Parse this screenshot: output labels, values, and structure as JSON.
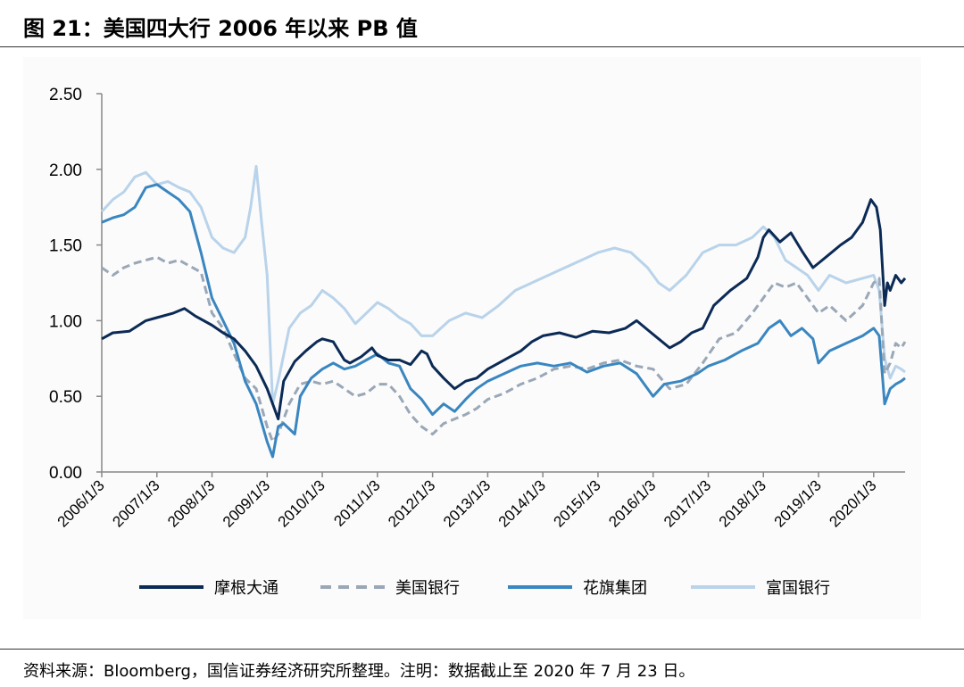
{
  "figure": {
    "title": "图 21：美国四大行 2006 年以来 PB 值"
  },
  "source_note": "资料来源：Bloomberg，国信证券经济研究所整理。注明：数据截止至 2020 年 7 月 23 日。",
  "chart_data": {
    "type": "line",
    "title": "",
    "xlabel": "",
    "ylabel": "",
    "ylim": [
      0,
      2.5
    ],
    "yticks": [
      "0.00",
      "0.50",
      "1.00",
      "1.50",
      "2.00",
      "2.50"
    ],
    "xticks": [
      "2006/1/3",
      "2007/1/3",
      "2008/1/3",
      "2009/1/3",
      "2010/1/3",
      "2011/1/3",
      "2012/1/3",
      "2013/1/3",
      "2014/1/3",
      "2015/1/3",
      "2016/1/3",
      "2017/1/3",
      "2018/1/3",
      "2019/1/3",
      "2020/1/3"
    ],
    "x_range": [
      2006.0,
      2020.57
    ],
    "grid": false,
    "legend_position": "bottom",
    "series": [
      {
        "name": "摩根大通",
        "color": "#0b2a55",
        "style": "solid",
        "x": [
          2006.0,
          2006.2,
          2006.5,
          2006.8,
          2007.0,
          2007.3,
          2007.5,
          2007.7,
          2008.0,
          2008.2,
          2008.4,
          2008.6,
          2008.8,
          2009.0,
          2009.1,
          2009.2,
          2009.3,
          2009.5,
          2009.7,
          2009.9,
          2010.0,
          2010.2,
          2010.4,
          2010.5,
          2010.7,
          2010.9,
          2011.0,
          2011.2,
          2011.4,
          2011.6,
          2011.8,
          2011.9,
          2012.0,
          2012.2,
          2012.4,
          2012.6,
          2012.8,
          2013.0,
          2013.2,
          2013.4,
          2013.6,
          2013.8,
          2014.0,
          2014.3,
          2014.6,
          2014.9,
          2015.2,
          2015.5,
          2015.7,
          2015.9,
          2016.1,
          2016.3,
          2016.5,
          2016.7,
          2016.9,
          2017.1,
          2017.4,
          2017.7,
          2017.9,
          2018.0,
          2018.1,
          2018.3,
          2018.5,
          2018.7,
          2018.9,
          2019.0,
          2019.2,
          2019.4,
          2019.6,
          2019.8,
          2019.95,
          2020.05,
          2020.12,
          2020.2,
          2020.25,
          2020.3,
          2020.4,
          2020.5,
          2020.57
        ],
        "values": [
          0.88,
          0.92,
          0.93,
          1.0,
          1.02,
          1.05,
          1.08,
          1.03,
          0.97,
          0.92,
          0.88,
          0.8,
          0.7,
          0.55,
          0.45,
          0.35,
          0.6,
          0.73,
          0.8,
          0.86,
          0.88,
          0.86,
          0.74,
          0.72,
          0.76,
          0.82,
          0.77,
          0.74,
          0.74,
          0.71,
          0.8,
          0.78,
          0.7,
          0.62,
          0.55,
          0.6,
          0.62,
          0.68,
          0.72,
          0.76,
          0.8,
          0.86,
          0.9,
          0.92,
          0.89,
          0.93,
          0.92,
          0.95,
          1.0,
          0.94,
          0.88,
          0.82,
          0.86,
          0.92,
          0.95,
          1.1,
          1.2,
          1.28,
          1.42,
          1.55,
          1.6,
          1.52,
          1.58,
          1.46,
          1.35,
          1.38,
          1.44,
          1.5,
          1.55,
          1.65,
          1.8,
          1.75,
          1.6,
          1.1,
          1.25,
          1.2,
          1.3,
          1.25,
          1.28
        ]
      },
      {
        "name": "美国银行",
        "color": "#9aa7b7",
        "style": "dashed",
        "x": [
          2006.0,
          2006.2,
          2006.4,
          2006.6,
          2006.8,
          2007.0,
          2007.2,
          2007.4,
          2007.6,
          2007.8,
          2008.0,
          2008.2,
          2008.4,
          2008.6,
          2008.8,
          2009.0,
          2009.1,
          2009.2,
          2009.4,
          2009.6,
          2009.8,
          2010.0,
          2010.2,
          2010.4,
          2010.6,
          2010.8,
          2011.0,
          2011.2,
          2011.4,
          2011.6,
          2011.8,
          2012.0,
          2012.2,
          2012.4,
          2012.6,
          2012.8,
          2013.0,
          2013.3,
          2013.6,
          2013.9,
          2014.2,
          2014.5,
          2014.8,
          2015.1,
          2015.4,
          2015.7,
          2016.0,
          2016.3,
          2016.6,
          2016.9,
          2017.2,
          2017.5,
          2017.8,
          2018.0,
          2018.2,
          2018.4,
          2018.6,
          2018.8,
          2019.0,
          2019.2,
          2019.5,
          2019.8,
          2020.0,
          2020.1,
          2020.2,
          2020.3,
          2020.4,
          2020.5,
          2020.57
        ],
        "values": [
          1.35,
          1.3,
          1.35,
          1.38,
          1.4,
          1.42,
          1.38,
          1.4,
          1.36,
          1.32,
          1.05,
          0.95,
          0.78,
          0.62,
          0.55,
          0.3,
          0.2,
          0.25,
          0.45,
          0.58,
          0.6,
          0.58,
          0.6,
          0.55,
          0.5,
          0.52,
          0.58,
          0.58,
          0.5,
          0.38,
          0.3,
          0.25,
          0.32,
          0.35,
          0.38,
          0.42,
          0.48,
          0.52,
          0.58,
          0.62,
          0.68,
          0.7,
          0.68,
          0.72,
          0.74,
          0.7,
          0.68,
          0.55,
          0.58,
          0.72,
          0.88,
          0.92,
          1.05,
          1.15,
          1.25,
          1.22,
          1.25,
          1.15,
          1.05,
          1.1,
          1.0,
          1.1,
          1.25,
          1.28,
          0.65,
          0.72,
          0.85,
          0.82,
          0.86
        ]
      },
      {
        "name": "花旗集团",
        "color": "#3a86c0",
        "style": "solid",
        "x": [
          2006.0,
          2006.2,
          2006.4,
          2006.6,
          2006.8,
          2007.0,
          2007.2,
          2007.4,
          2007.6,
          2007.8,
          2008.0,
          2008.2,
          2008.4,
          2008.6,
          2008.8,
          2009.0,
          2009.1,
          2009.2,
          2009.3,
          2009.5,
          2009.6,
          2009.8,
          2010.0,
          2010.2,
          2010.4,
          2010.6,
          2010.8,
          2011.0,
          2011.2,
          2011.4,
          2011.6,
          2011.8,
          2012.0,
          2012.2,
          2012.4,
          2012.6,
          2012.8,
          2013.0,
          2013.3,
          2013.6,
          2013.9,
          2014.2,
          2014.5,
          2014.8,
          2015.1,
          2015.4,
          2015.7,
          2016.0,
          2016.2,
          2016.5,
          2016.8,
          2017.0,
          2017.3,
          2017.6,
          2017.9,
          2018.1,
          2018.3,
          2018.5,
          2018.7,
          2018.9,
          2019.0,
          2019.2,
          2019.5,
          2019.8,
          2020.0,
          2020.1,
          2020.2,
          2020.3,
          2020.4,
          2020.5,
          2020.57
        ],
        "values": [
          1.65,
          1.68,
          1.7,
          1.75,
          1.88,
          1.9,
          1.85,
          1.8,
          1.72,
          1.45,
          1.15,
          1.0,
          0.85,
          0.6,
          0.45,
          0.2,
          0.1,
          0.3,
          0.32,
          0.25,
          0.5,
          0.62,
          0.68,
          0.72,
          0.68,
          0.7,
          0.74,
          0.78,
          0.72,
          0.7,
          0.55,
          0.48,
          0.38,
          0.45,
          0.4,
          0.48,
          0.55,
          0.6,
          0.65,
          0.7,
          0.72,
          0.7,
          0.72,
          0.66,
          0.7,
          0.72,
          0.65,
          0.5,
          0.58,
          0.6,
          0.65,
          0.7,
          0.74,
          0.8,
          0.85,
          0.95,
          1.0,
          0.9,
          0.95,
          0.88,
          0.72,
          0.8,
          0.85,
          0.9,
          0.95,
          0.9,
          0.45,
          0.55,
          0.58,
          0.6,
          0.62
        ]
      },
      {
        "name": "富国银行",
        "color": "#b9d3ea",
        "style": "solid",
        "x": [
          2006.0,
          2006.2,
          2006.4,
          2006.6,
          2006.8,
          2007.0,
          2007.2,
          2007.4,
          2007.6,
          2007.8,
          2008.0,
          2008.2,
          2008.4,
          2008.6,
          2008.7,
          2008.8,
          2008.9,
          2009.0,
          2009.1,
          2009.2,
          2009.4,
          2009.6,
          2009.8,
          2010.0,
          2010.2,
          2010.4,
          2010.6,
          2010.8,
          2011.0,
          2011.2,
          2011.4,
          2011.6,
          2011.8,
          2012.0,
          2012.3,
          2012.6,
          2012.9,
          2013.2,
          2013.5,
          2013.8,
          2014.1,
          2014.4,
          2014.7,
          2015.0,
          2015.3,
          2015.6,
          2015.9,
          2016.1,
          2016.3,
          2016.6,
          2016.9,
          2017.2,
          2017.5,
          2017.8,
          2018.0,
          2018.2,
          2018.4,
          2018.6,
          2018.8,
          2019.0,
          2019.2,
          2019.5,
          2019.8,
          2020.0,
          2020.1,
          2020.2,
          2020.3,
          2020.4,
          2020.5,
          2020.57
        ],
        "values": [
          1.72,
          1.8,
          1.85,
          1.95,
          1.98,
          1.9,
          1.92,
          1.88,
          1.85,
          1.75,
          1.55,
          1.48,
          1.45,
          1.55,
          1.75,
          2.02,
          1.65,
          1.3,
          0.45,
          0.6,
          0.95,
          1.05,
          1.1,
          1.2,
          1.15,
          1.08,
          0.98,
          1.05,
          1.12,
          1.08,
          1.02,
          0.98,
          0.9,
          0.9,
          1.0,
          1.05,
          1.02,
          1.1,
          1.2,
          1.25,
          1.3,
          1.35,
          1.4,
          1.45,
          1.48,
          1.45,
          1.35,
          1.25,
          1.2,
          1.3,
          1.45,
          1.5,
          1.5,
          1.55,
          1.62,
          1.55,
          1.4,
          1.35,
          1.3,
          1.2,
          1.3,
          1.25,
          1.28,
          1.3,
          1.2,
          0.75,
          0.62,
          0.7,
          0.68,
          0.66
        ]
      }
    ]
  }
}
